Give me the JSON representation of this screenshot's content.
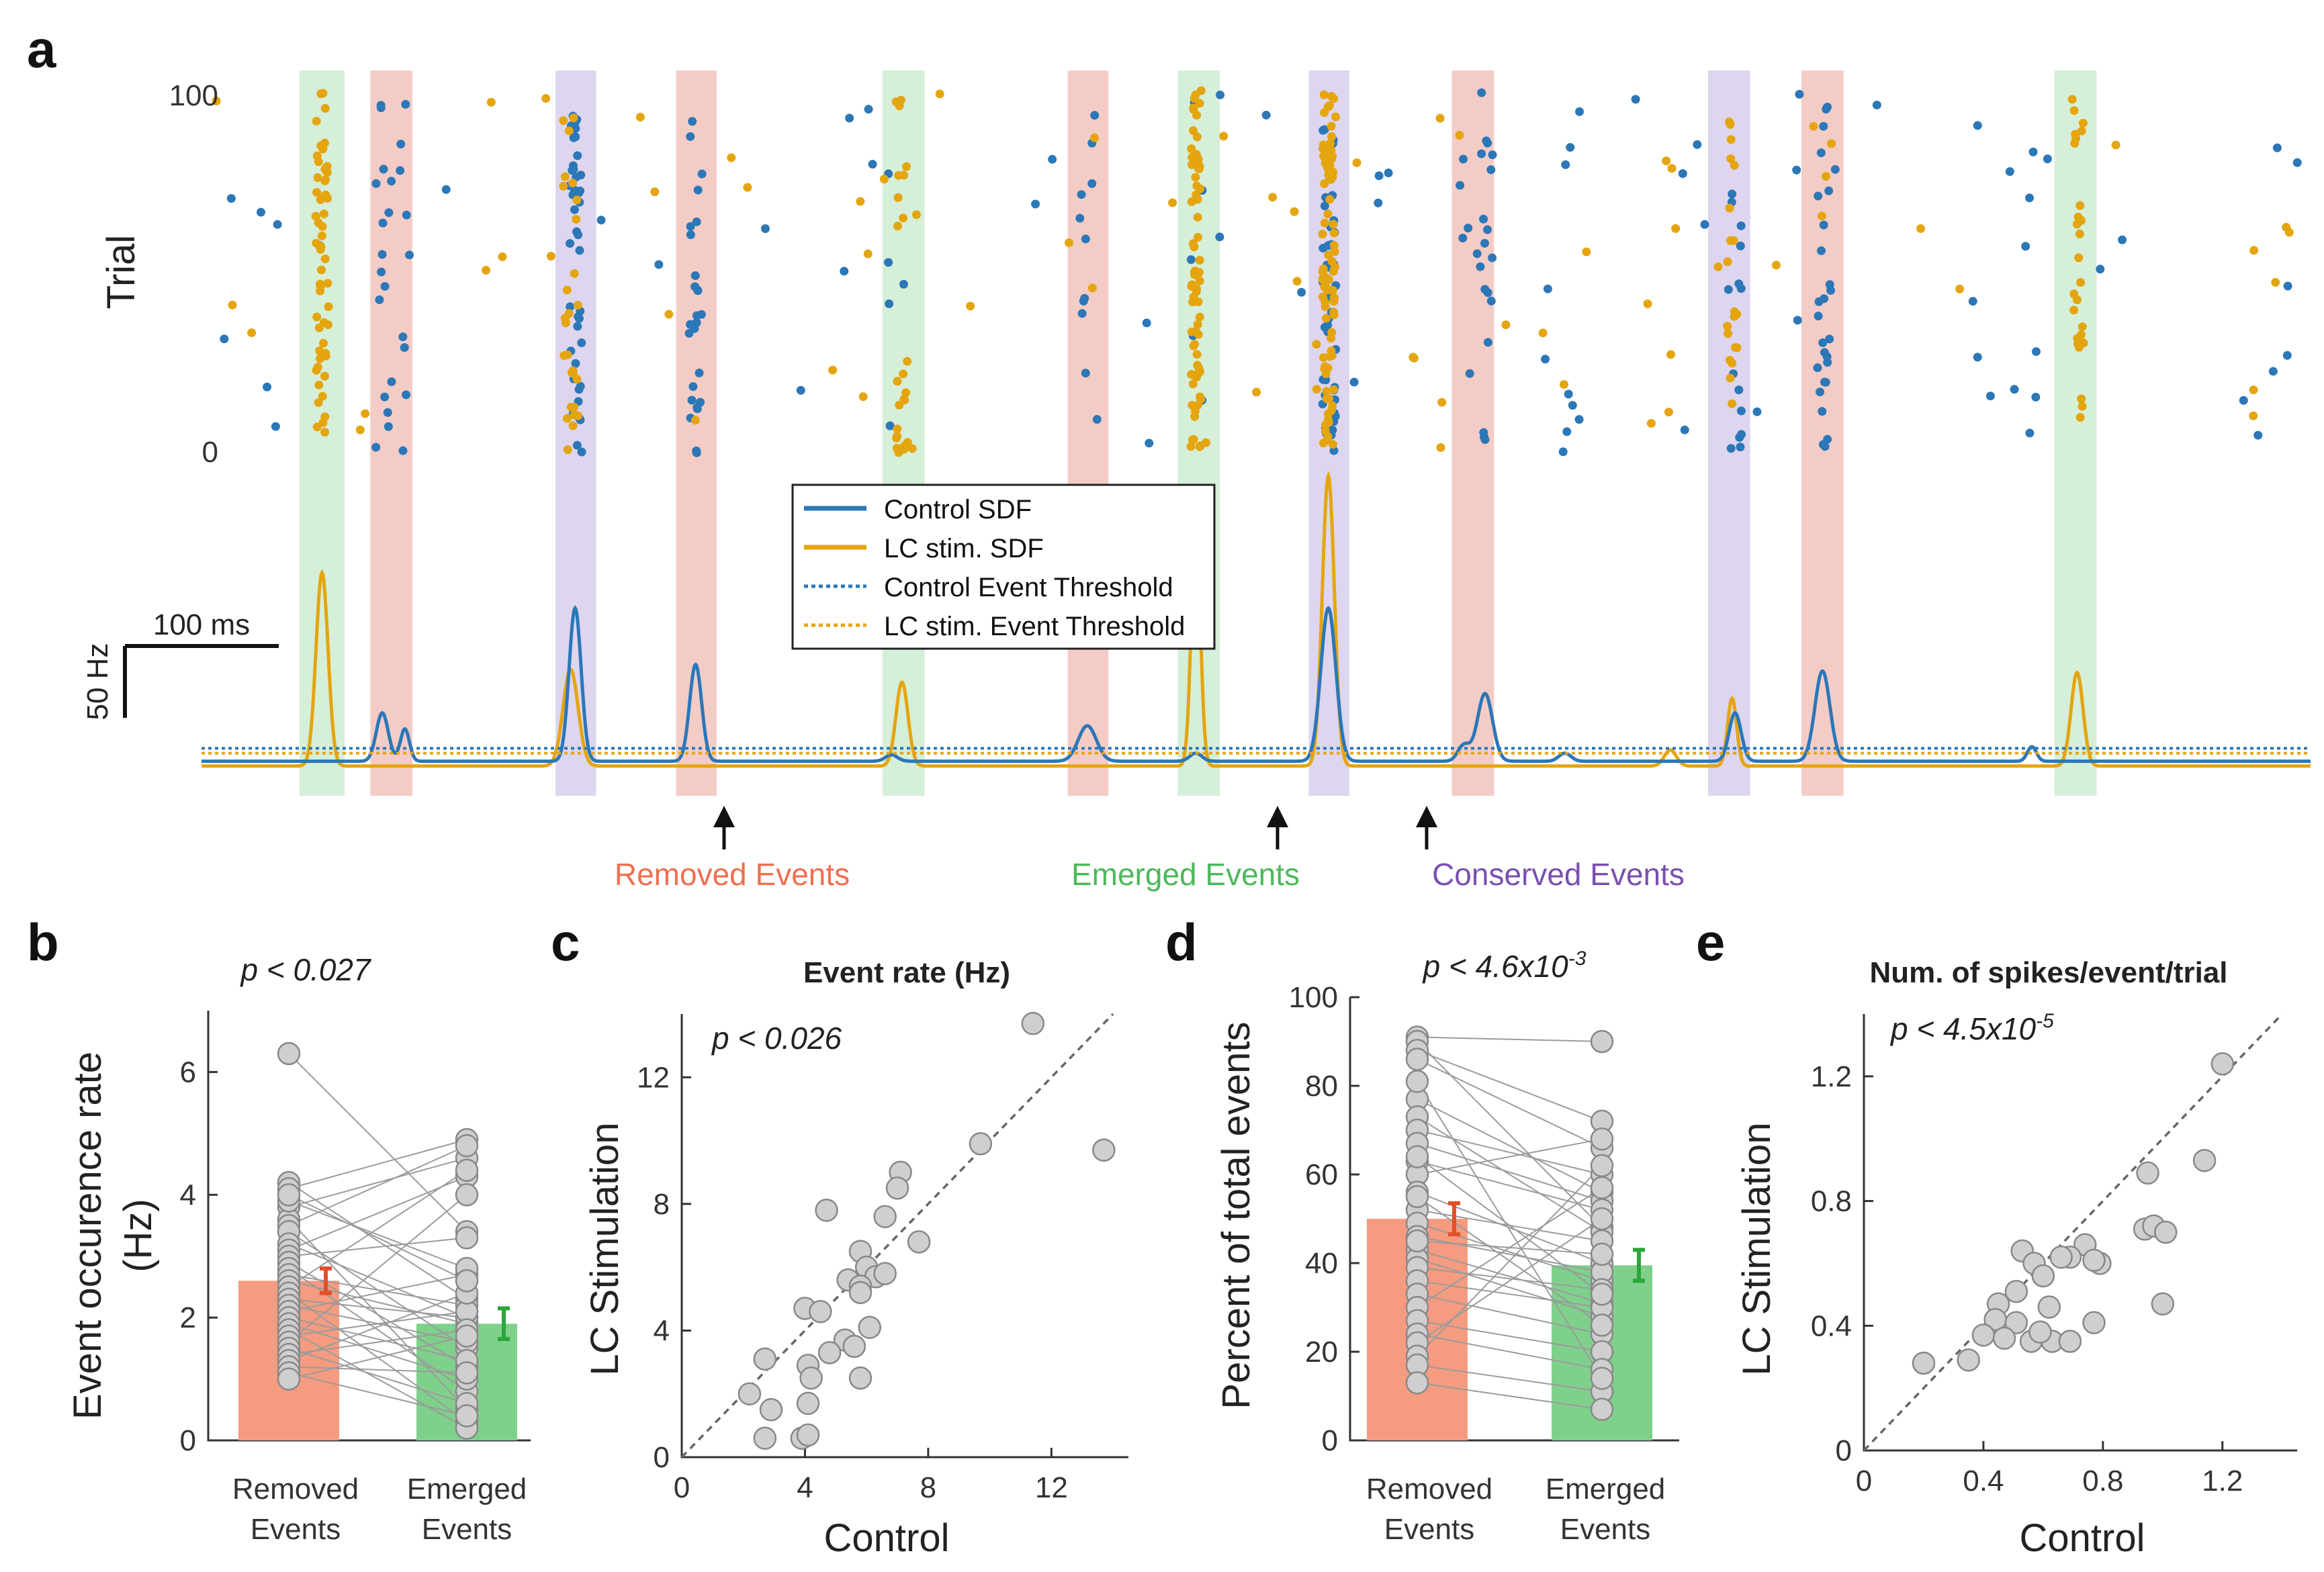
{
  "colors": {
    "control": "#2b77b8",
    "lc": "#e5a50f",
    "removed": "#f4ccc6",
    "emerged": "#d6efd8",
    "conserved": "#ddd6ee",
    "removed_text": "#ef6f4f",
    "emerged_text": "#4cb85a",
    "conserved_text": "#7a4fb0",
    "bar_removed": "#f49b80",
    "bar_emerged": "#7fd08b",
    "err_removed": "#e0502a",
    "err_emerged": "#2aa63c",
    "point": "#cfcfcf"
  },
  "panel_labels": {
    "a": "a",
    "b": "b",
    "c": "c",
    "d": "d",
    "e": "e"
  },
  "panel_a": {
    "ylabel": "Trial",
    "y_top": "100",
    "y_bottom": "0",
    "scale_time": "100 ms",
    "scale_rate": "50 Hz",
    "legend": [
      {
        "label": "Control SDF",
        "style": "solid",
        "color": "#2b77b8"
      },
      {
        "label": "LC stim. SDF",
        "style": "solid",
        "color": "#e5a50f"
      },
      {
        "label": "Control Event Threshold",
        "style": "dotted",
        "color": "#2b77b8"
      },
      {
        "label": "LC stim. Event Threshold",
        "style": "dotted",
        "color": "#e5a50f"
      }
    ],
    "annotations": {
      "removed": "Removed Events",
      "emerged": "Emerged Events",
      "conserved": "Conserved Events"
    }
  },
  "chart_data": [
    {
      "panel": "a",
      "type": "line",
      "title": "",
      "xlabel": "",
      "ylabel": "Trial",
      "x_range": [
        0,
        1400
      ],
      "trial_range": [
        0,
        100
      ],
      "sdf_range_hz": [
        0,
        200
      ],
      "event_windows": [
        {
          "type": "emerged",
          "start": 65,
          "end": 95
        },
        {
          "type": "removed",
          "start": 112,
          "end": 140
        },
        {
          "type": "conserved",
          "start": 235,
          "end": 262
        },
        {
          "type": "removed",
          "start": 315,
          "end": 342
        },
        {
          "type": "emerged",
          "start": 452,
          "end": 480
        },
        {
          "type": "removed",
          "start": 575,
          "end": 602
        },
        {
          "type": "emerged",
          "start": 648,
          "end": 676
        },
        {
          "type": "conserved",
          "start": 735,
          "end": 762
        },
        {
          "type": "removed",
          "start": 830,
          "end": 858
        },
        {
          "type": "conserved",
          "start": 1000,
          "end": 1028
        },
        {
          "type": "removed",
          "start": 1062,
          "end": 1090
        },
        {
          "type": "emerged",
          "start": 1230,
          "end": 1258
        }
      ],
      "series": [
        {
          "name": "Control SDF",
          "baseline": 6,
          "peaks": [
            {
              "t": 120,
              "amp": 30,
              "w": 4
            },
            {
              "t": 135,
              "amp": 20,
              "w": 3
            },
            {
              "t": 248,
              "amp": 95,
              "w": 4
            },
            {
              "t": 328,
              "amp": 60,
              "w": 4
            },
            {
              "t": 458,
              "amp": 4,
              "w": 4
            },
            {
              "t": 588,
              "amp": 22,
              "w": 6
            },
            {
              "t": 660,
              "amp": 5,
              "w": 4
            },
            {
              "t": 748,
              "amp": 95,
              "w": 5
            },
            {
              "t": 838,
              "amp": 10,
              "w": 4
            },
            {
              "t": 852,
              "amp": 42,
              "w": 5
            },
            {
              "t": 905,
              "amp": 5,
              "w": 4
            },
            {
              "t": 1018,
              "amp": 30,
              "w": 4
            },
            {
              "t": 1076,
              "amp": 56,
              "w": 5
            },
            {
              "t": 1215,
              "amp": 9,
              "w": 3
            }
          ]
        },
        {
          "name": "LC stim. SDF",
          "baseline": 3,
          "peaks": [
            {
              "t": 80,
              "amp": 120,
              "w": 4
            },
            {
              "t": 245,
              "amp": 60,
              "w": 5
            },
            {
              "t": 465,
              "amp": 52,
              "w": 4
            },
            {
              "t": 660,
              "amp": 150,
              "w": 3
            },
            {
              "t": 748,
              "amp": 180,
              "w": 4
            },
            {
              "t": 975,
              "amp": 10,
              "w": 4
            },
            {
              "t": 1016,
              "amp": 42,
              "w": 3
            },
            {
              "t": 1245,
              "amp": 58,
              "w": 4
            }
          ]
        },
        {
          "name": "Control Event Threshold",
          "value": 14
        },
        {
          "name": "LC stim. Event Threshold",
          "value": 11
        }
      ]
    },
    {
      "panel": "b",
      "type": "bar",
      "title": "p < 0.027",
      "xlabel": "",
      "ylabel": "Event occurence rate (Hz)",
      "ylabel_lines": [
        "Event occurence rate",
        "(Hz)"
      ],
      "categories": [
        "Removed Events",
        "Emerged Events"
      ],
      "category_lines": [
        [
          "Removed",
          "Events"
        ],
        [
          "Emerged",
          "Events"
        ]
      ],
      "ylim": [
        0,
        7
      ],
      "yticks": [
        0,
        2,
        4,
        6
      ],
      "values": [
        2.6,
        1.9
      ],
      "errors": [
        0.2,
        0.25
      ],
      "paired": [
        [
          6.3,
          3.4
        ],
        [
          4.2,
          2.3
        ],
        [
          4.1,
          4.9
        ],
        [
          3.8,
          4.6
        ],
        [
          3.6,
          0.5
        ],
        [
          3.5,
          4.8
        ],
        [
          3.4,
          1.5
        ],
        [
          3.2,
          2.0
        ],
        [
          3.1,
          4.3
        ],
        [
          3.0,
          3.3
        ],
        [
          2.9,
          1.2
        ],
        [
          2.8,
          0.8
        ],
        [
          2.7,
          2.2
        ],
        [
          2.6,
          1.9
        ],
        [
          2.5,
          4.4
        ],
        [
          2.4,
          0.3
        ],
        [
          2.3,
          2.0
        ],
        [
          2.2,
          1.6
        ],
        [
          2.1,
          2.7
        ],
        [
          2.0,
          1.3
        ],
        [
          1.9,
          1.0
        ],
        [
          1.8,
          0.2
        ],
        [
          1.7,
          2.1
        ],
        [
          1.6,
          4.0
        ],
        [
          1.5,
          0.6
        ],
        [
          1.4,
          1.8
        ],
        [
          1.3,
          2.4
        ],
        [
          1.2,
          1.1
        ],
        [
          1.1,
          0.4
        ],
        [
          1.0,
          1.7
        ],
        [
          3.9,
          2.8
        ],
        [
          4.0,
          2.6
        ]
      ]
    },
    {
      "panel": "c",
      "type": "scatter",
      "title": "Event rate (Hz)",
      "stat": "p < 0.026",
      "xlabel": "Control",
      "ylabel": "LC Stimulation",
      "xlim": [
        0,
        14.5
      ],
      "ylim": [
        0,
        14
      ],
      "xticks": [
        0,
        4,
        8,
        12
      ],
      "yticks": [
        0,
        4,
        8,
        12
      ],
      "points": [
        [
          11.4,
          13.7
        ],
        [
          13.7,
          9.7
        ],
        [
          9.7,
          9.9
        ],
        [
          7.1,
          9.0
        ],
        [
          7.0,
          8.5
        ],
        [
          4.7,
          7.8
        ],
        [
          6.6,
          7.6
        ],
        [
          7.7,
          6.8
        ],
        [
          5.8,
          6.5
        ],
        [
          6.0,
          6.0
        ],
        [
          5.4,
          5.6
        ],
        [
          6.3,
          5.7
        ],
        [
          5.8,
          5.4
        ],
        [
          5.8,
          5.2
        ],
        [
          6.6,
          5.8
        ],
        [
          4.0,
          4.7
        ],
        [
          4.5,
          4.6
        ],
        [
          6.1,
          4.1
        ],
        [
          5.3,
          3.7
        ],
        [
          5.6,
          3.5
        ],
        [
          4.8,
          3.3
        ],
        [
          2.7,
          3.1
        ],
        [
          4.1,
          2.9
        ],
        [
          4.2,
          2.5
        ],
        [
          5.8,
          2.5
        ],
        [
          2.2,
          2.0
        ],
        [
          2.9,
          1.5
        ],
        [
          4.1,
          1.7
        ],
        [
          2.7,
          0.6
        ],
        [
          3.9,
          0.6
        ],
        [
          4.1,
          0.7
        ]
      ]
    },
    {
      "panel": "d",
      "type": "bar",
      "title": "p < 4.6x10-3",
      "title_base": "p < 4.6x10",
      "title_exp": "-3",
      "xlabel": "",
      "ylabel": "Percent of total events",
      "categories": [
        "Removed Events",
        "Emerged Events"
      ],
      "category_lines": [
        [
          "Removed",
          "Events"
        ],
        [
          "Emerged",
          "Events"
        ]
      ],
      "ylim": [
        0,
        100
      ],
      "yticks": [
        0,
        20,
        40,
        60,
        80,
        100
      ],
      "values": [
        50,
        39.5
      ],
      "errors": [
        3.5,
        3.5
      ],
      "paired": [
        [
          91,
          90
        ],
        [
          90,
          48
        ],
        [
          88,
          72
        ],
        [
          86,
          66
        ],
        [
          77,
          56
        ],
        [
          73,
          47
        ],
        [
          70,
          60
        ],
        [
          67,
          54
        ],
        [
          63,
          52
        ],
        [
          60,
          68
        ],
        [
          56,
          40
        ],
        [
          52,
          45
        ],
        [
          49,
          36
        ],
        [
          46,
          38
        ],
        [
          43,
          31
        ],
        [
          41,
          28
        ],
        [
          39,
          34
        ],
        [
          36,
          30
        ],
        [
          33,
          24
        ],
        [
          30,
          57
        ],
        [
          27,
          20
        ],
        [
          24,
          16
        ],
        [
          22,
          50
        ],
        [
          19,
          62
        ],
        [
          17,
          11
        ],
        [
          13,
          7
        ],
        [
          45,
          42
        ],
        [
          55,
          26
        ],
        [
          64,
          33
        ],
        [
          81,
          14
        ]
      ]
    },
    {
      "panel": "e",
      "type": "scatter",
      "title": "Num. of spikes/event/trial",
      "stat": "p < 4.5x10-5",
      "stat_base": "p < 4.5x10",
      "stat_exp": "-5",
      "xlabel": "Control",
      "ylabel": "LC Stimulation",
      "xlim": [
        0,
        1.45
      ],
      "ylim": [
        0,
        1.4
      ],
      "xticks": [
        0,
        0.4,
        0.8,
        1.2
      ],
      "yticks": [
        0,
        0.4,
        0.8,
        1.2
      ],
      "points": [
        [
          1.2,
          1.24
        ],
        [
          1.14,
          0.93
        ],
        [
          0.95,
          0.89
        ],
        [
          0.94,
          0.71
        ],
        [
          0.97,
          0.72
        ],
        [
          1.01,
          0.7
        ],
        [
          1.0,
          0.47
        ],
        [
          0.74,
          0.66
        ],
        [
          0.79,
          0.6
        ],
        [
          0.77,
          0.61
        ],
        [
          0.69,
          0.62
        ],
        [
          0.66,
          0.62
        ],
        [
          0.53,
          0.64
        ],
        [
          0.57,
          0.6
        ],
        [
          0.6,
          0.56
        ],
        [
          0.51,
          0.51
        ],
        [
          0.45,
          0.47
        ],
        [
          0.62,
          0.46
        ],
        [
          0.44,
          0.42
        ],
        [
          0.51,
          0.41
        ],
        [
          0.77,
          0.41
        ],
        [
          0.4,
          0.37
        ],
        [
          0.47,
          0.36
        ],
        [
          0.56,
          0.35
        ],
        [
          0.63,
          0.35
        ],
        [
          0.69,
          0.35
        ],
        [
          0.35,
          0.29
        ],
        [
          0.2,
          0.28
        ],
        [
          0.59,
          0.38
        ]
      ]
    }
  ]
}
